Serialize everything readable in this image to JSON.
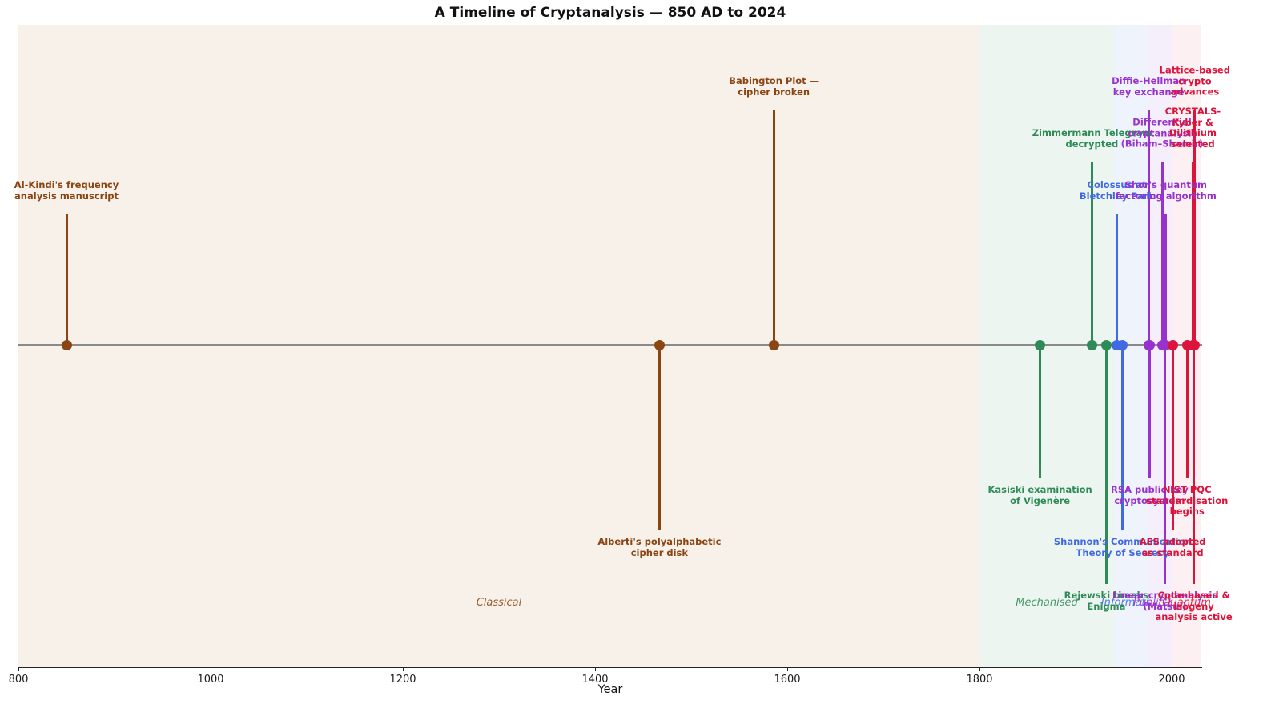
{
  "chart_data": {
    "type": "timeline",
    "title": "A Timeline of Cryptanalysis — 850 AD to 2024",
    "xlabel": "Year",
    "xlim": [
      800,
      2031
    ],
    "xticks": [
      "800",
      "1000",
      "1200",
      "1400",
      "1600",
      "1800",
      "2000"
    ],
    "baseline_color": "#8a8a8a",
    "legend_position": "none",
    "grid": false,
    "eras": [
      {
        "name": "Classical",
        "start": 800,
        "end": 1800,
        "color": "#8B4513",
        "band_color": "#f7f1ea"
      },
      {
        "name": "Mechanised",
        "start": 1800,
        "end": 1940,
        "color": "#2E8B57",
        "band_color": "#edf5f0"
      },
      {
        "name": "Information",
        "start": 1940,
        "end": 1976,
        "color": "#4169E1",
        "band_color": "#eff3fc"
      },
      {
        "name": "Public-Key",
        "start": 1976,
        "end": 2000,
        "color": "#9932CC",
        "band_color": "#f5eefb"
      },
      {
        "name": "Quantum",
        "start": 2000,
        "end": 2031,
        "color": "#DC143C",
        "band_color": "#fcf0f2"
      }
    ],
    "events": [
      {
        "year": 850,
        "era": "Classical",
        "side": "above",
        "level": 3,
        "label": "Al-Kindi's frequency\nanalysis manuscript"
      },
      {
        "year": 1467,
        "era": "Classical",
        "side": "below",
        "level": 4,
        "label": "Alberti's polyalphabetic\ncipher disk"
      },
      {
        "year": 1586,
        "era": "Classical",
        "side": "above",
        "level": 5,
        "label": "Babington Plot —\ncipher broken"
      },
      {
        "year": 1863,
        "era": "Mechanised",
        "side": "below",
        "level": 3,
        "label": "Kasiski examination\nof Vigenère"
      },
      {
        "year": 1917,
        "era": "Mechanised",
        "side": "above",
        "level": 4,
        "label": "Zimmermann Telegram\ndecrypted"
      },
      {
        "year": 1932,
        "era": "Mechanised",
        "side": "below",
        "level": 5,
        "label": "Rejewski breaks\nEnigma"
      },
      {
        "year": 1943,
        "era": "Information",
        "side": "above",
        "level": 3,
        "label": "Colossus at\nBletchley Park"
      },
      {
        "year": 1949,
        "era": "Information",
        "side": "below",
        "level": 4,
        "label": "Shannon's Communication\nTheory of Secrecy"
      },
      {
        "year": 1976,
        "era": "Public-Key",
        "side": "above",
        "level": 5,
        "label": "Diffie-Hellman\nkey exchange"
      },
      {
        "year": 1977,
        "era": "Public-Key",
        "side": "below",
        "level": 3,
        "label": "RSA public-key\ncryptosystem"
      },
      {
        "year": 1990,
        "era": "Public-Key",
        "side": "above",
        "level": 4,
        "label": "Differential\ncryptanalysis (Biham–Shamir)"
      },
      {
        "year": 1993,
        "era": "Public-Key",
        "side": "below",
        "level": 5,
        "label": "Linear cryptanalysis\n(Matsui)"
      },
      {
        "year": 1994,
        "era": "Public-Key",
        "side": "above",
        "level": 3,
        "label": "Shor's quantum\nfactoring algorithm"
      },
      {
        "year": 2001,
        "era": "Quantum",
        "side": "below",
        "level": 4,
        "label": "AES adopted\nas standard"
      },
      {
        "year": 2016,
        "era": "Quantum",
        "side": "below",
        "level": 3,
        "label": "NIST PQC\nstandardisation begins"
      },
      {
        "year": 2022,
        "era": "Quantum",
        "side": "above",
        "level": 4,
        "label": "CRYSTALS-Kyber &\nDilithium selected"
      },
      {
        "year": 2023,
        "era": "Quantum",
        "side": "below",
        "level": 5,
        "label": "Code-based & isogeny\nanalysis active"
      },
      {
        "year": 2024,
        "era": "Quantum",
        "side": "above",
        "level": 5,
        "label": "Lattice-based\ncrypto advances"
      }
    ]
  }
}
